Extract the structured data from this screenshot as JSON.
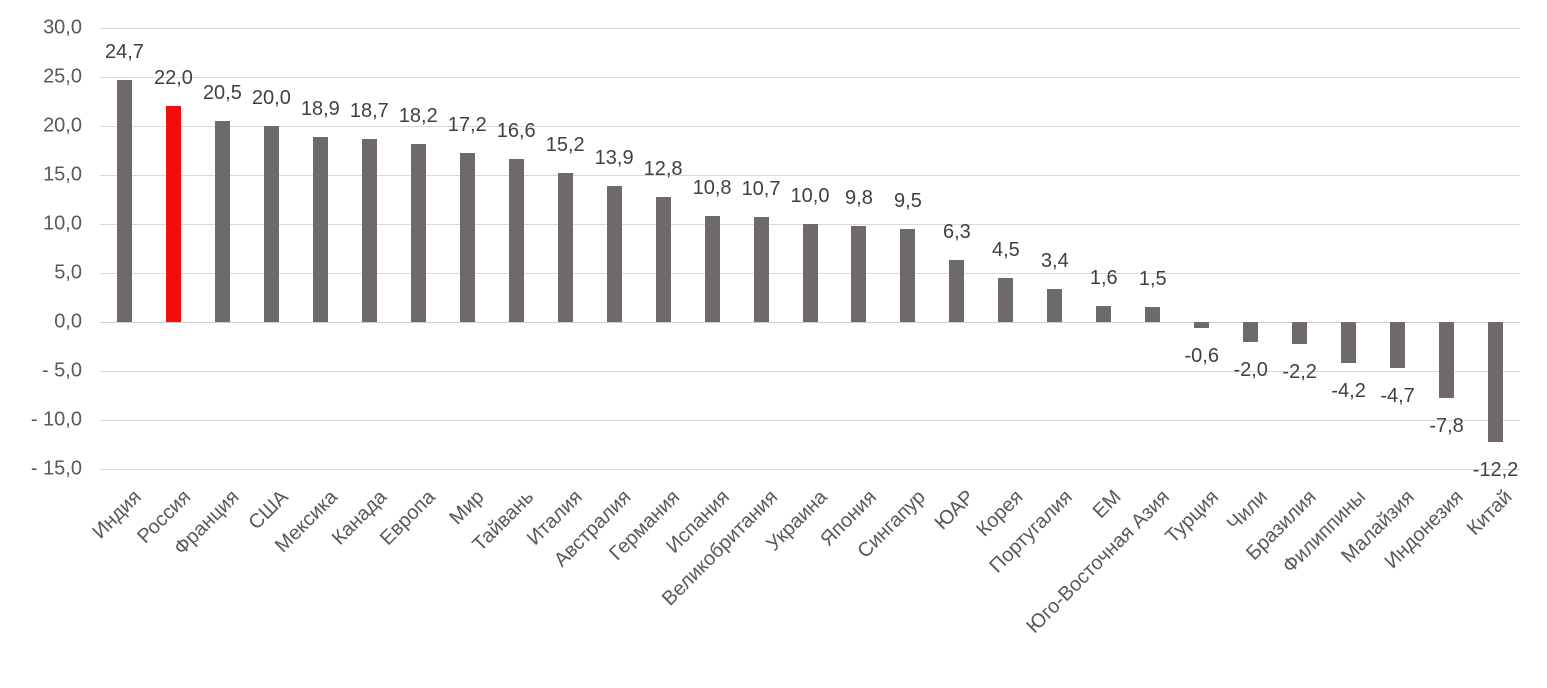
{
  "chart_data": {
    "type": "bar",
    "title": "",
    "xlabel": "",
    "ylabel": "",
    "categories": [
      "Индия",
      "Россия",
      "Франция",
      "США",
      "Мексика",
      "Канада",
      "Европа",
      "Мир",
      "Тайвань",
      "Италия",
      "Австралия",
      "Германия",
      "Испания",
      "Великобритания",
      "Украина",
      "Япония",
      "Сингапур",
      "ЮАР",
      "Корея",
      "Португалия",
      "ЕМ",
      "Юго-Восточная Азия",
      "Турция",
      "Чили",
      "Бразилия",
      "Филиппины",
      "Малайзия",
      "Индонезия",
      "Китай"
    ],
    "values": [
      24.7,
      22.0,
      20.5,
      20.0,
      18.9,
      18.7,
      18.2,
      17.2,
      16.6,
      15.2,
      13.9,
      12.8,
      10.8,
      10.7,
      10.0,
      9.8,
      9.5,
      6.3,
      4.5,
      3.4,
      1.6,
      1.5,
      -0.6,
      -2.0,
      -2.2,
      -4.2,
      -4.7,
      -7.8,
      -12.2
    ],
    "value_labels": [
      "24,7",
      "22,0",
      "20,5",
      "20,0",
      "18,9",
      "18,7",
      "18,2",
      "17,2",
      "16,6",
      "15,2",
      "13,9",
      "12,8",
      "10,8",
      "10,7",
      "10,0",
      "9,8",
      "9,5",
      "6,3",
      "4,5",
      "3,4",
      "1,6",
      "1,5",
      "-0,6",
      "-2,0",
      "-2,2",
      "-4,2",
      "-4,7",
      "-7,8",
      "-12,2"
    ],
    "highlight_category": "Россия",
    "highlight_index": 1,
    "colors": {
      "bar": "#6e696b",
      "highlight": "#f20d0d",
      "gridline": "#d9d9d9",
      "axis_text": "#595959",
      "data_label_text": "#404040"
    },
    "y_ticks": [
      30,
      25,
      20,
      15,
      10,
      5,
      0,
      -5,
      -10,
      -15
    ],
    "y_tick_labels": [
      "30,0",
      "25,0",
      "20,0",
      "15,0",
      "10,0",
      "5,0",
      "0,0",
      "- 5,0",
      "- 10,0",
      "- 15,0"
    ],
    "ylim": [
      -15,
      30
    ],
    "grid": true,
    "legend": false,
    "x_labels_rotation_deg": -45
  }
}
